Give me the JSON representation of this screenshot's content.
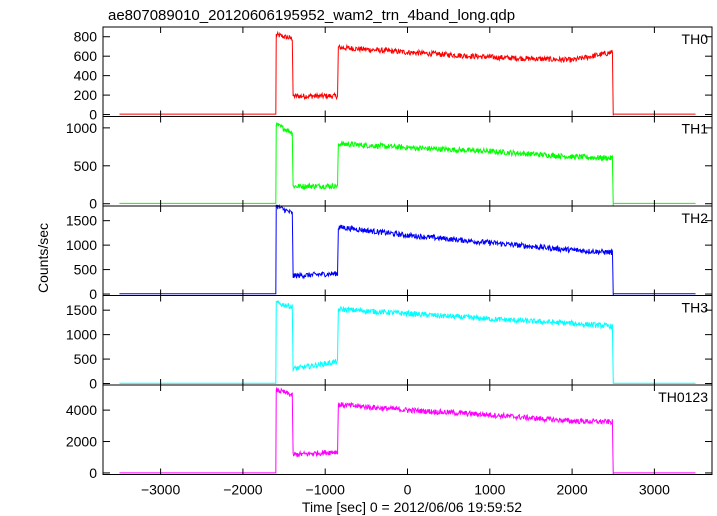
{
  "chart_data": {
    "type": "line",
    "title": "ae807089010_20120606195952_wam2_trn_4band_long.qdp",
    "xlabel": "Time [sec] 0 = 2012/06/06 19:59:52",
    "ylabel": "Counts/sec",
    "xlim": [
      -3700,
      3700
    ],
    "xticks": [
      -3000,
      -2000,
      -1000,
      0,
      1000,
      2000,
      3000
    ],
    "grid": false,
    "panels": [
      {
        "name": "TH0",
        "color": "#ff0000",
        "ylim": [
          -20,
          900
        ],
        "yticks": [
          0,
          200,
          400,
          600,
          800
        ],
        "x": [
          -3500,
          -1600,
          -1595,
          -1400,
          -1390,
          -850,
          -840,
          0,
          1000,
          2000,
          2490,
          2500,
          3500
        ],
        "y": [
          5,
          5,
          820,
          780,
          190,
          190,
          690,
          640,
          590,
          560,
          640,
          5,
          5
        ]
      },
      {
        "name": "TH1",
        "color": "#00ff00",
        "ylim": [
          -30,
          1150
        ],
        "yticks": [
          0,
          500,
          1000
        ],
        "x": [
          -3500,
          -1600,
          -1595,
          -1400,
          -1390,
          -850,
          -840,
          0,
          1000,
          2000,
          2490,
          2500,
          3500
        ],
        "y": [
          5,
          5,
          1040,
          940,
          230,
          235,
          790,
          740,
          690,
          620,
          600,
          5,
          5
        ]
      },
      {
        "name": "TH2",
        "color": "#0000ff",
        "ylim": [
          -30,
          1800
        ],
        "yticks": [
          0,
          500,
          1000,
          1500
        ],
        "x": [
          -3500,
          -1600,
          -1595,
          -1400,
          -1390,
          -850,
          -840,
          0,
          1000,
          2000,
          2490,
          2500,
          3500
        ],
        "y": [
          5,
          5,
          1800,
          1650,
          370,
          420,
          1370,
          1200,
          1050,
          900,
          850,
          5,
          5
        ]
      },
      {
        "name": "TH3",
        "color": "#00ffff",
        "ylim": [
          -30,
          1800
        ],
        "yticks": [
          0,
          500,
          1000,
          1500
        ],
        "x": [
          -3500,
          -1600,
          -1595,
          -1400,
          -1390,
          -1200,
          -850,
          -840,
          0,
          1000,
          2000,
          2490,
          2500,
          3500
        ],
        "y": [
          5,
          5,
          1650,
          1570,
          300,
          350,
          450,
          1520,
          1430,
          1320,
          1230,
          1170,
          5,
          5
        ]
      },
      {
        "name": "TH0123",
        "color": "#ff00ff",
        "ylim": [
          -100,
          5600
        ],
        "yticks": [
          0,
          2000,
          4000
        ],
        "x": [
          -3500,
          -1600,
          -1595,
          -1400,
          -1390,
          -850,
          -840,
          0,
          1000,
          2000,
          2490,
          2500,
          3500
        ],
        "y": [
          5,
          5,
          5300,
          4950,
          1150,
          1350,
          4350,
          4000,
          3700,
          3300,
          3250,
          5,
          5
        ]
      }
    ]
  }
}
